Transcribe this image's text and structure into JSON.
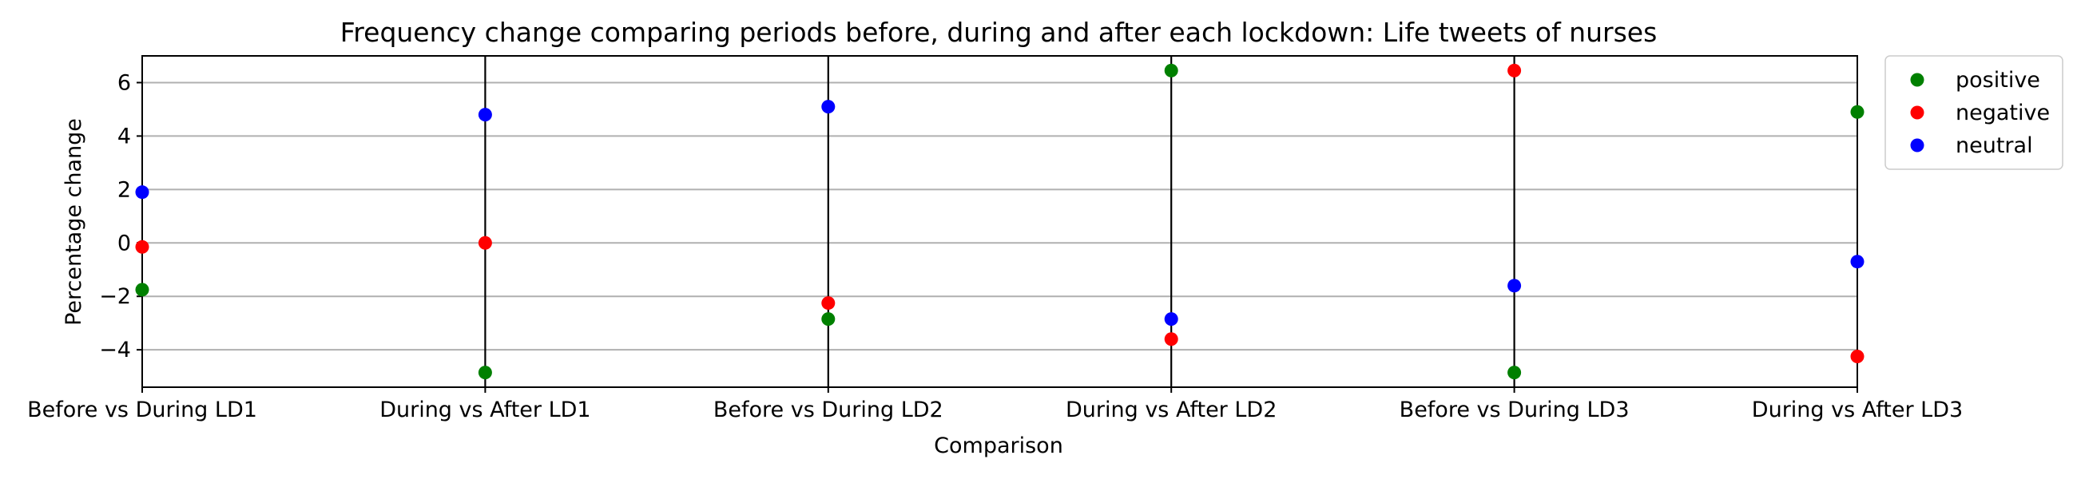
{
  "chart_data": {
    "type": "scatter",
    "title": "Frequency change comparing periods before, during and after each lockdown: Life tweets of nurses",
    "xlabel": "Comparison",
    "ylabel": "Percentage change",
    "categories": [
      "Before vs During LD1",
      "During vs After LD1",
      "Before vs During LD2",
      "During vs After LD2",
      "Before vs During LD3",
      "During vs After LD3"
    ],
    "ylim": [
      -5.4,
      7.0
    ],
    "yticks": [
      -4,
      -2,
      0,
      2,
      4,
      6
    ],
    "grid": "horizontal",
    "legend_position": "outside-top-right",
    "vertical_lines_at": [
      1,
      2,
      3,
      4
    ],
    "series": [
      {
        "name": "positive",
        "color": "#008000",
        "values": [
          -1.75,
          -4.85,
          -2.85,
          6.45,
          -4.85,
          4.9
        ]
      },
      {
        "name": "negative",
        "color": "#ff0000",
        "values": [
          -0.15,
          0.0,
          -2.25,
          -3.6,
          6.45,
          -4.25
        ]
      },
      {
        "name": "neutral",
        "color": "#0000ff",
        "values": [
          1.9,
          4.8,
          5.1,
          -2.85,
          -1.6,
          -0.7
        ]
      }
    ]
  }
}
